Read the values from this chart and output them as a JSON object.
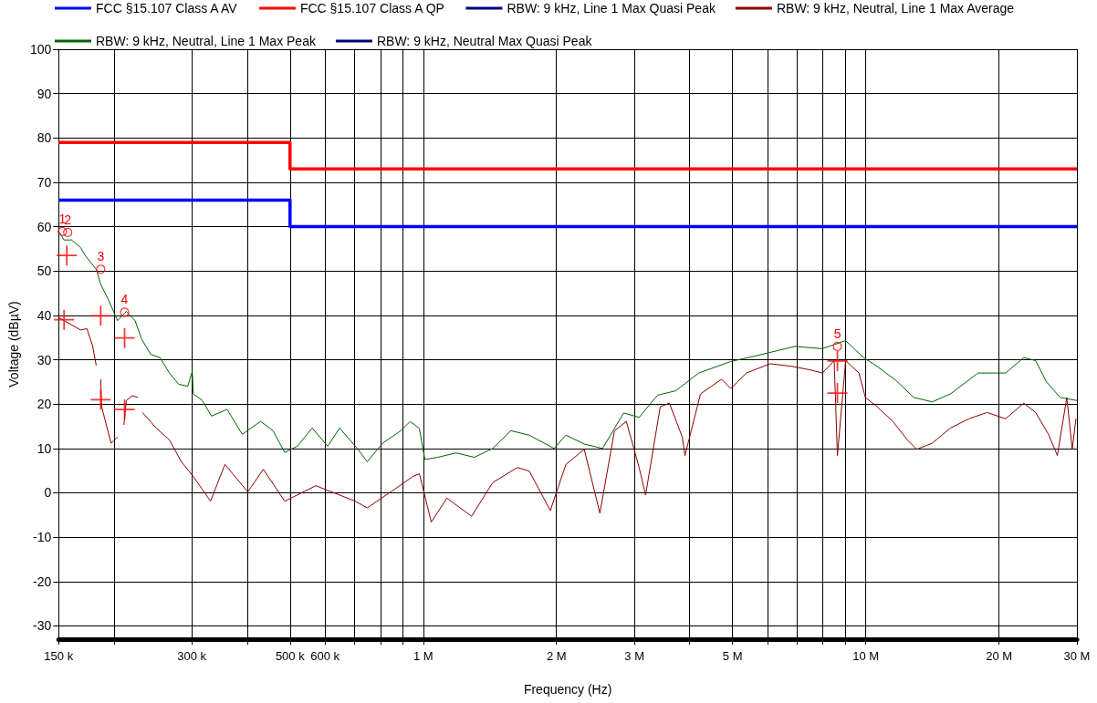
{
  "chart_data": {
    "type": "line",
    "xlabel": "Frequency (Hz)",
    "ylabel": "Voltage (dBµV)",
    "log": "x",
    "xlim": [
      150000,
      30000000
    ],
    "ylim": [
      -33,
      100
    ],
    "xticks": [
      {
        "value": 150000,
        "label": "150 k"
      },
      {
        "value": 200000,
        "label": null
      },
      {
        "value": 300000,
        "label": "300 k"
      },
      {
        "value": 400000,
        "label": null
      },
      {
        "value": 500000,
        "label": "500 k"
      },
      {
        "value": 600000,
        "label": "600 k"
      },
      {
        "value": 700000,
        "label": null
      },
      {
        "value": 800000,
        "label": null
      },
      {
        "value": 900000,
        "label": null
      },
      {
        "value": 1000000,
        "label": "1 M"
      },
      {
        "value": 2000000,
        "label": "2 M"
      },
      {
        "value": 3000000,
        "label": "3 M"
      },
      {
        "value": 4000000,
        "label": null
      },
      {
        "value": 5000000,
        "label": "5 M"
      },
      {
        "value": 6000000,
        "label": null
      },
      {
        "value": 7000000,
        "label": null
      },
      {
        "value": 8000000,
        "label": null
      },
      {
        "value": 9000000,
        "label": null
      },
      {
        "value": 10000000,
        "label": "10 M"
      },
      {
        "value": 20000000,
        "label": "20 M"
      },
      {
        "value": 30000000,
        "label": "30 M"
      }
    ],
    "yticks": [
      -30,
      -20,
      -10,
      0,
      10,
      20,
      30,
      40,
      50,
      60,
      70,
      80,
      90,
      100
    ],
    "grid": true,
    "legend": "top",
    "line_style": "solid",
    "series": [
      {
        "name": "FCC §15.107 Class A AV",
        "type": "step",
        "color": "#0000ff",
        "marker": "none",
        "x": [
          150000,
          500000,
          30000000
        ],
        "values": [
          66,
          60,
          60
        ]
      },
      {
        "name": "FCC §15.107 Class A QP",
        "type": "step",
        "color": "#ff0000",
        "marker": "none",
        "x": [
          150000,
          500000,
          30000000
        ],
        "values": [
          79,
          73,
          73
        ]
      },
      {
        "name": "RBW: 9 kHz, Line 1 Max Quasi Peak",
        "type": "line",
        "color": "#000080",
        "marker": "none"
      },
      {
        "name": "RBW: 9 kHz, Neutral, Line 1 Max Average",
        "color": "#8b0000",
        "marker": "none",
        "x": [
          150700,
          168200,
          173800,
          178900,
          182400,
          185000,
          186700,
          187600,
          197000,
          203800,
          206000,
          210600,
          213400,
          220200,
          226500,
          229000,
          232000,
          249200,
          267000,
          284100,
          302100,
          330600,
          356300,
          401300,
          435100,
          486400,
          571800,
          702000,
          747000,
          861600,
          948600,
          980000,
          1042800,
          1131000,
          1286000,
          1435000,
          1632000,
          1736000,
          1937000,
          2101000,
          2311000,
          2507000,
          2705000,
          2877000,
          3075000,
          3180000,
          3432000,
          3599000,
          3848000,
          3903000,
          4232000,
          4722000,
          4953000,
          5370000,
          6078000,
          6816000,
          7494000,
          7980000,
          8484000,
          8627000,
          9006000,
          9650000,
          9978000,
          10610000,
          11510000,
          12420000,
          13030000,
          14130000,
          15540000,
          17100000,
          18800000,
          20700000,
          22750000,
          24200000,
          25870000,
          27100000,
          28460000,
          29280000,
          29850000
        ],
        "values": [
          39.4,
          36.7,
          37,
          33.2,
          28.7,
          null,
          25.6,
          19.4,
          11.2,
          12.6,
          null,
          15.3,
          20.8,
          21.9,
          21.5,
          null,
          18.1,
          14.6,
          11.9,
          7,
          3.7,
          -1.9,
          6.4,
          0.2,
          5.3,
          -1.9,
          1.6,
          -1.9,
          -3.4,
          0.8,
          3.7,
          4.3,
          -6.6,
          -1.2,
          -5.3,
          2.3,
          5.7,
          4.9,
          -4,
          6.4,
          9.8,
          -4.6,
          14,
          16.1,
          5.7,
          -0.5,
          19.4,
          20.2,
          12.6,
          8.4,
          22.3,
          25.6,
          23.5,
          27,
          29.1,
          28.5,
          27.7,
          27,
          29.8,
          8.4,
          29.8,
          27,
          21.5,
          19.4,
          16.1,
          11.9,
          9.8,
          11.2,
          14.6,
          16.7,
          18.1,
          16.7,
          20.2,
          18.1,
          13.2,
          8.4,
          21.5,
          9.8,
          16.7
        ]
      },
      {
        "name": "RBW: 9 kHz, Neutral, Line 1 Max Peak",
        "color": "#006400",
        "marker": "none",
        "x": [
          150700,
          154300,
          160400,
          168200,
          172200,
          182400,
          186700,
          194200,
          203800,
          213400,
          223300,
          230900,
          242200,
          254000,
          267000,
          280000,
          293600,
          300700,
          302100,
          316800,
          332200,
          360400,
          390000,
          429000,
          457500,
          486400,
          519300,
          561000,
          608200,
          647300,
          712000,
          747000,
          809800,
          890300,
          934200,
          980000,
          1008600,
          1078000,
          1186000,
          1305000,
          1435000,
          1578000,
          1736000,
          1975000,
          2101000,
          2311000,
          2542000,
          2837000,
          3075000,
          3383000,
          3720000,
          4192000,
          4953000,
          5712000,
          6914000,
          7980000,
          9006000,
          9884000,
          10610000,
          11680000,
          12840000,
          14130000,
          15540000,
          17930000,
          20700000,
          22750000,
          24200000,
          25600000,
          27500000,
          30000000
        ],
        "values": [
          58.7,
          57,
          57,
          55.3,
          53.5,
          50.4,
          47,
          43.6,
          38.8,
          40.9,
          38.8,
          34.7,
          31.2,
          30.5,
          27,
          24.5,
          24,
          27.4,
          22.3,
          20.8,
          17.3,
          18.8,
          13.2,
          16.1,
          14,
          9.1,
          10.5,
          14.6,
          10.5,
          14.6,
          9.8,
          7,
          11.2,
          14,
          16.1,
          14.5,
          7.5,
          8,
          9,
          8,
          10,
          14,
          13,
          10,
          13,
          11,
          10,
          18,
          17,
          22,
          23,
          27,
          29.6,
          31,
          33,
          32.5,
          34.3,
          30.5,
          28.5,
          25.4,
          21.5,
          20.5,
          22.3,
          27,
          27,
          30.5,
          29.8,
          25,
          21.5,
          20.8
        ]
      },
      {
        "name": "RBW: 9 kHz, Neutral Max Quasi Peak",
        "type": "line",
        "color": "#000080",
        "marker": "none"
      },
      {
        "type": "scatter",
        "color": "#ff0000",
        "marker": "circle",
        "x": [
          152900,
          157200,
          186700,
          211400,
          8627000
        ],
        "values": [
          58.9,
          58.7,
          50.4,
          40.7,
          33
        ]
      },
      {
        "type": "scatter",
        "color": "#ff0000",
        "marker": "cross",
        "x": [
          156500,
          186700,
          211400,
          8627000
        ],
        "values": [
          53.5,
          39.9,
          34.9,
          29.7
        ]
      },
      {
        "type": "scatter",
        "color": "#ff0000",
        "marker": "cross",
        "x": [
          154300,
          186700,
          211400,
          8627000
        ],
        "values": [
          39,
          21,
          18.8,
          22.5
        ]
      }
    ],
    "annotations": [
      {
        "text": "1",
        "x": 152900,
        "y": 58.9
      },
      {
        "text": "2",
        "x": 157200,
        "y": 58.7
      },
      {
        "text": "3",
        "x": 186700,
        "y": 50.4
      },
      {
        "text": "4",
        "x": 211400,
        "y": 40.7
      },
      {
        "text": "5",
        "x": 8627000,
        "y": 33
      }
    ]
  }
}
